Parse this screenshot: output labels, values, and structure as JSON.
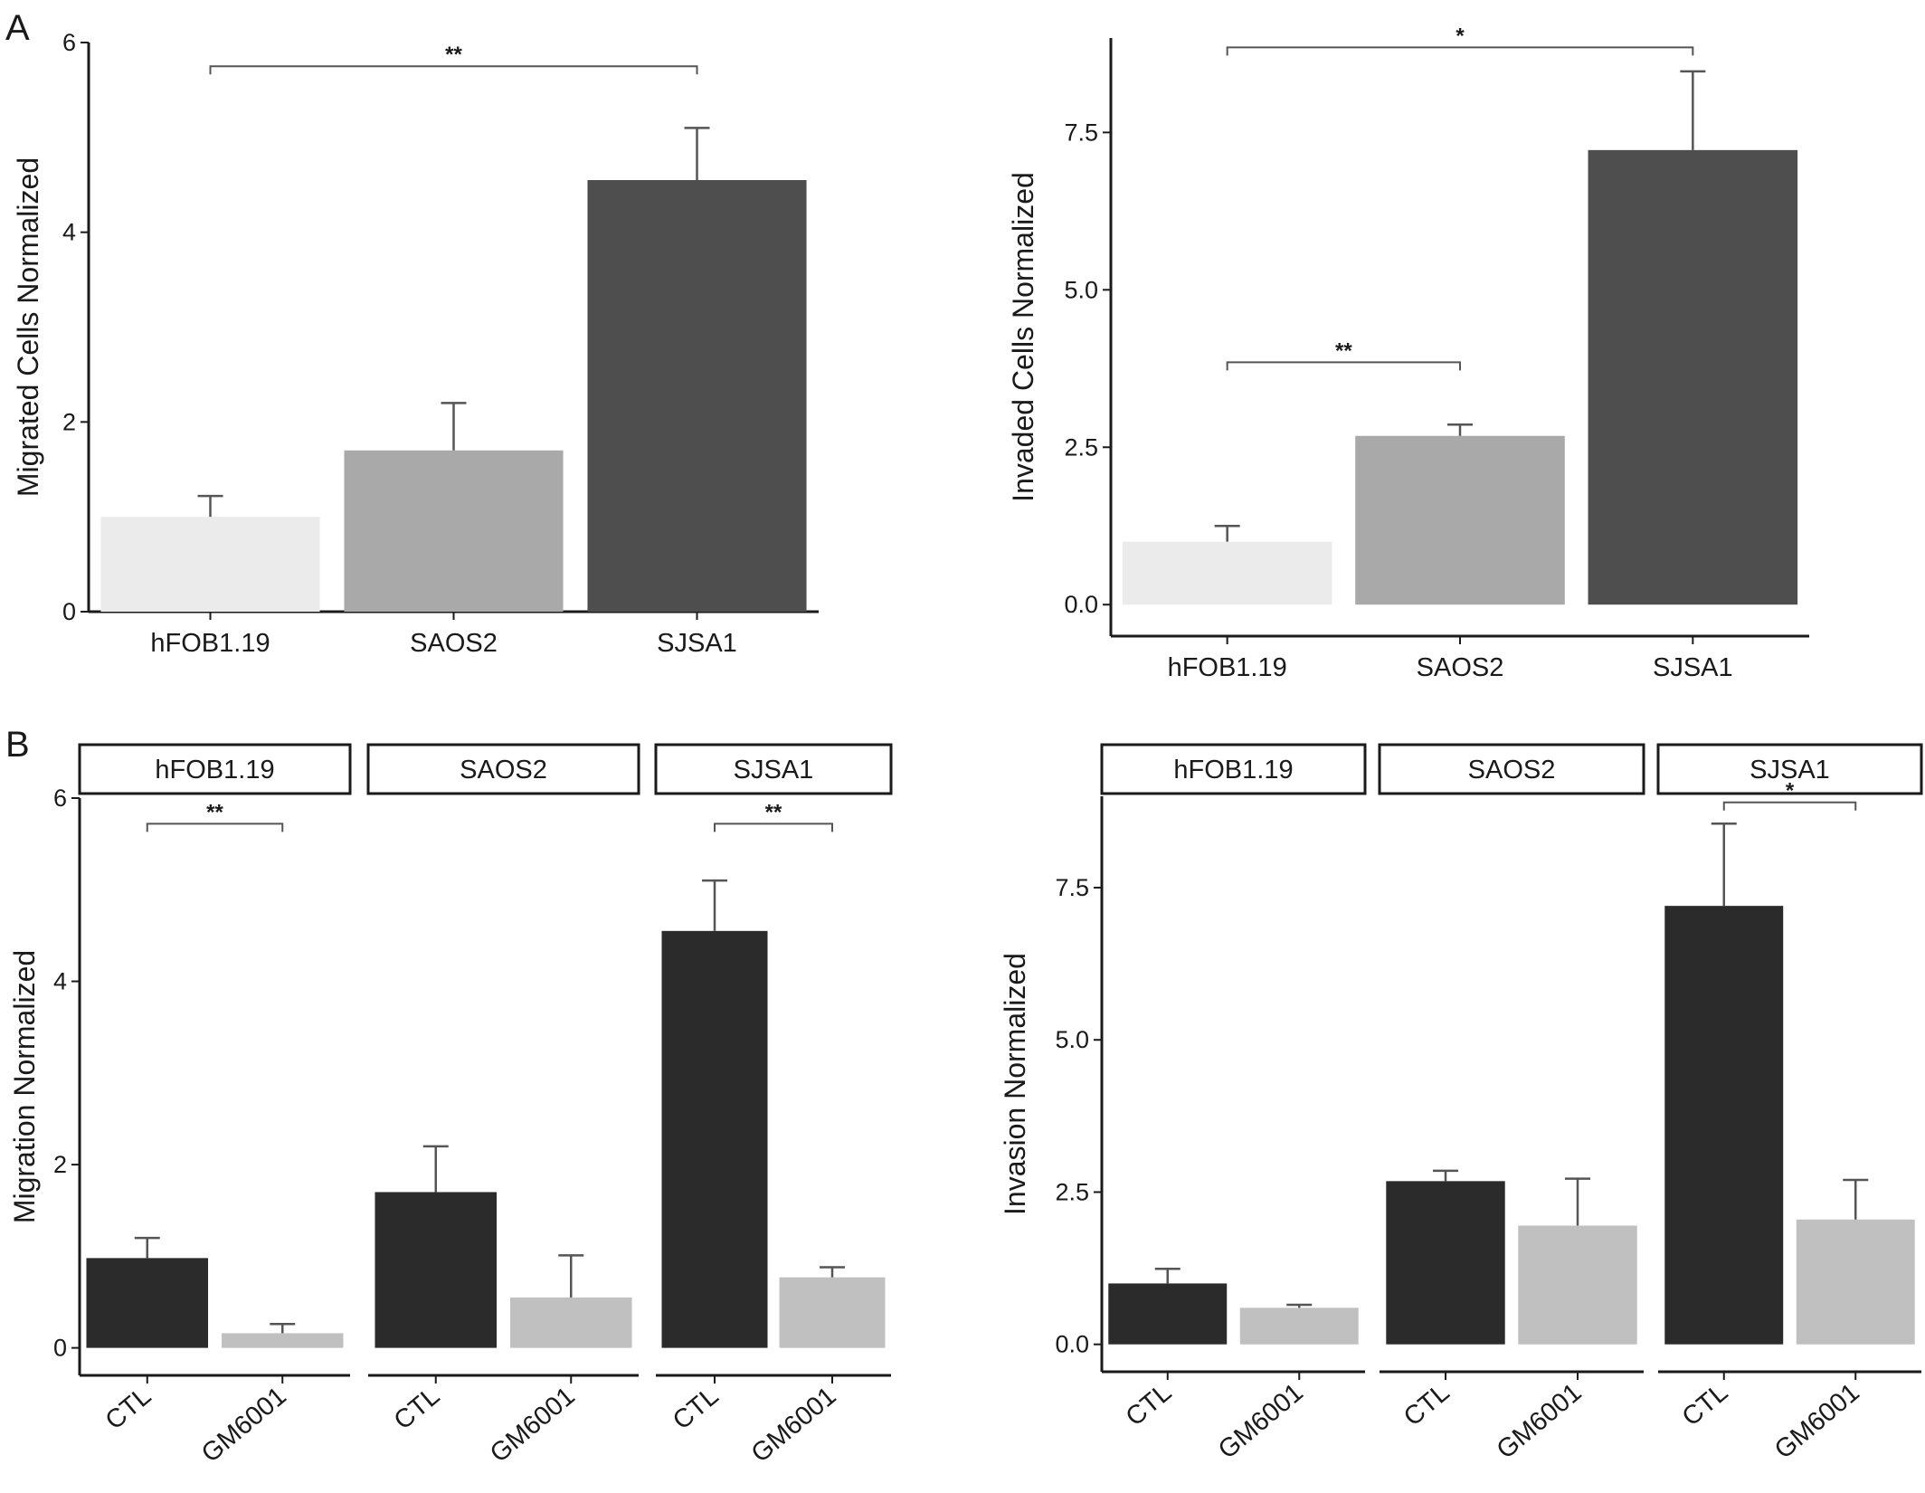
{
  "panel_labels": {
    "a": "A",
    "b": "B"
  },
  "colors": {
    "light_bar": "#ebebeb",
    "mid_bar": "#a9a9a9",
    "dark_bar": "#4e4e4e",
    "ctl_bar": "#2b2b2b",
    "gm_bar": "#c0c0c0"
  },
  "chart_data": [
    {
      "id": "A-migration",
      "type": "bar",
      "ylabel": "Migrated Cells Normalized",
      "xlabel": "",
      "ylim": [
        0,
        6
      ],
      "yticks": [
        "0",
        "2",
        "4",
        "6"
      ],
      "ytick_values": [
        0,
        2,
        4,
        6
      ],
      "categories": [
        "hFOB1.19",
        "SAOS2",
        "SJSA1"
      ],
      "values": [
        1.0,
        1.7,
        4.55
      ],
      "errors": [
        0.22,
        0.5,
        0.55
      ],
      "bar_colors": [
        "#ebebeb",
        "#a9a9a9",
        "#4e4e4e"
      ],
      "significance": [
        {
          "from": 0,
          "to": 2,
          "label": "**",
          "y": 5.75
        }
      ]
    },
    {
      "id": "A-invasion",
      "type": "bar",
      "ylabel": "Invaded Cells Normalized",
      "xlabel": "",
      "ylim": [
        -0.5,
        9.0
      ],
      "yticks": [
        "0.0",
        "2.5",
        "5.0",
        "7.5"
      ],
      "ytick_values": [
        0,
        2.5,
        5.0,
        7.5
      ],
      "categories": [
        "hFOB1.19",
        "SAOS2",
        "SJSA1"
      ],
      "values": [
        1.0,
        2.68,
        7.22
      ],
      "errors": [
        0.25,
        0.18,
        1.25
      ],
      "bar_colors": [
        "#ebebeb",
        "#a9a9a9",
        "#4e4e4e"
      ],
      "significance": [
        {
          "from": 0,
          "to": 2,
          "label": "*",
          "y": 8.85
        },
        {
          "from": 0,
          "to": 1,
          "label": "**",
          "y": 3.85
        }
      ]
    },
    {
      "id": "B-migration",
      "type": "bar",
      "ylabel": "Migration Normalized",
      "xlabel": "",
      "ylim": [
        -0.3,
        6.0
      ],
      "yticks": [
        "0",
        "2",
        "4",
        "6"
      ],
      "ytick_values": [
        0,
        2,
        4,
        6
      ],
      "facets": [
        {
          "title": "hFOB1.19",
          "categories": [
            "CTL",
            "GM6001"
          ],
          "values": [
            0.98,
            0.16
          ],
          "errors": [
            0.22,
            0.1
          ],
          "significance": [
            {
              "from": 0,
              "to": 1,
              "label": "**",
              "y": 5.72
            }
          ]
        },
        {
          "title": "SAOS2",
          "categories": [
            "CTL",
            "GM6001"
          ],
          "values": [
            1.7,
            0.55
          ],
          "errors": [
            0.5,
            0.46
          ],
          "significance": []
        },
        {
          "title": "SJSA1",
          "categories": [
            "CTL",
            "GM6001"
          ],
          "values": [
            4.55,
            0.77
          ],
          "errors": [
            0.55,
            0.11
          ],
          "significance": [
            {
              "from": 0,
              "to": 1,
              "label": "**",
              "y": 5.72
            }
          ]
        }
      ],
      "bar_colors": [
        "#2b2b2b",
        "#c0c0c0"
      ]
    },
    {
      "id": "B-invasion",
      "type": "bar",
      "ylabel": "Invasion Normalized",
      "xlabel": "",
      "ylim": [
        -0.45,
        9.0
      ],
      "yticks": [
        "0.0",
        "2.5",
        "5.0",
        "7.5"
      ],
      "ytick_values": [
        0,
        2.5,
        5.0,
        7.5
      ],
      "facets": [
        {
          "title": "hFOB1.19",
          "categories": [
            "CTL",
            "GM6001"
          ],
          "values": [
            1.0,
            0.6
          ],
          "errors": [
            0.24,
            0.05
          ],
          "significance": []
        },
        {
          "title": "SAOS2",
          "categories": [
            "CTL",
            "GM6001"
          ],
          "values": [
            2.68,
            1.95
          ],
          "errors": [
            0.17,
            0.77
          ],
          "significance": []
        },
        {
          "title": "SJSA1",
          "categories": [
            "CTL",
            "GM6001"
          ],
          "values": [
            7.2,
            2.05
          ],
          "errors": [
            1.35,
            0.65
          ],
          "significance": [
            {
              "from": 0,
              "to": 1,
              "label": "*",
              "y": 8.9
            }
          ]
        }
      ],
      "bar_colors": [
        "#2b2b2b",
        "#c0c0c0"
      ]
    }
  ]
}
